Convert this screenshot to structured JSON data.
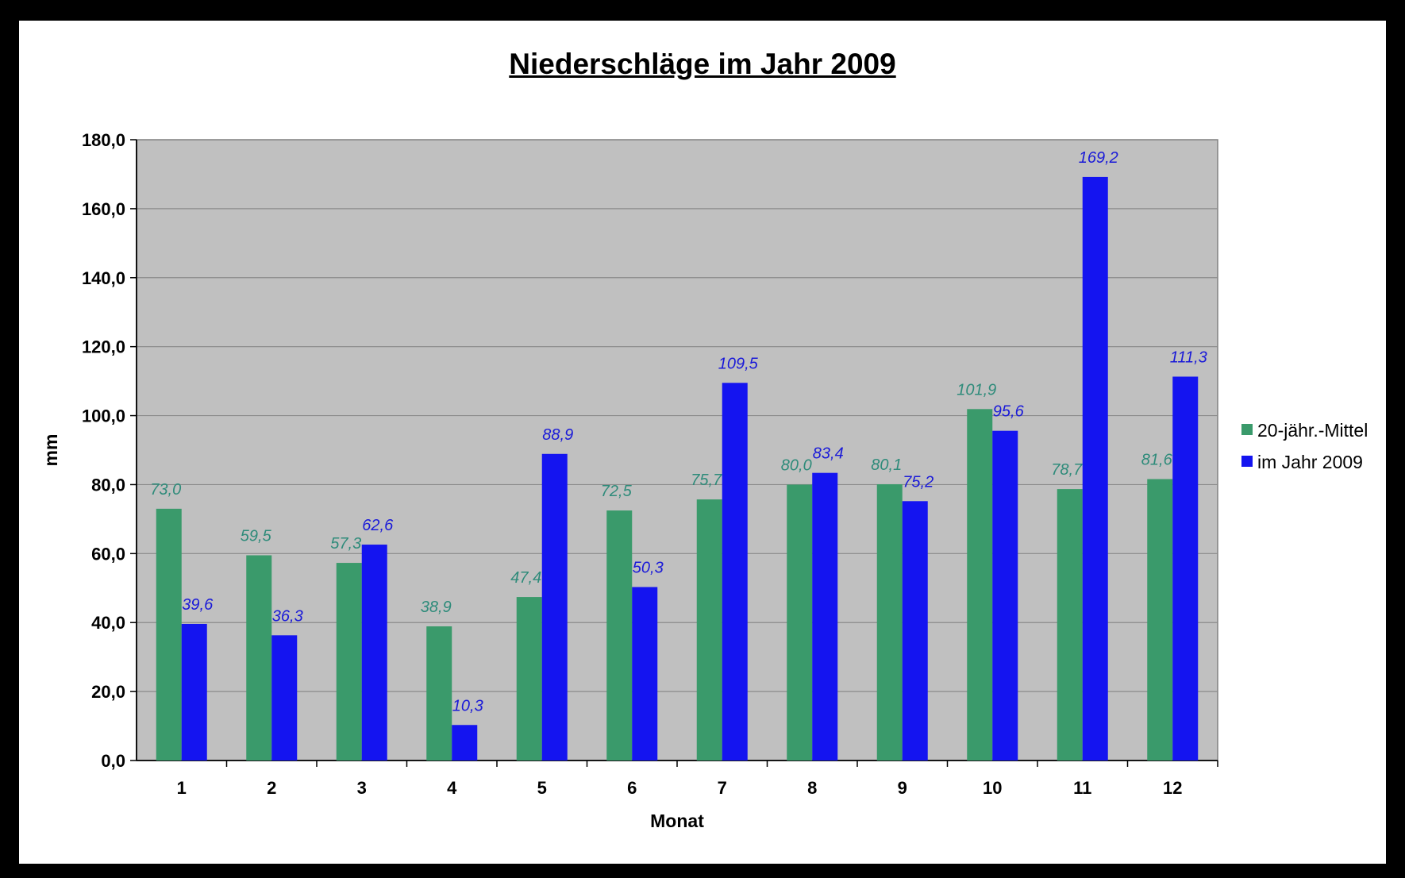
{
  "chart_data": {
    "type": "bar",
    "title": "Niederschläge im Jahr 2009",
    "xlabel": "Monat",
    "ylabel": "mm",
    "ylim": [
      0,
      180
    ],
    "ytick_step": 20,
    "ytick_labels": [
      "0,0",
      "20,0",
      "40,0",
      "60,0",
      "80,0",
      "100,0",
      "120,0",
      "140,0",
      "160,0",
      "180,0"
    ],
    "categories": [
      "1",
      "2",
      "3",
      "4",
      "5",
      "6",
      "7",
      "8",
      "9",
      "10",
      "11",
      "12"
    ],
    "series": [
      {
        "name": "20-jähr.-Mittel",
        "color": "#3a9a6b",
        "label_color": "#2e8b7a",
        "values": [
          73.0,
          59.5,
          57.3,
          38.9,
          47.4,
          72.5,
          75.7,
          80.0,
          80.1,
          101.9,
          78.7,
          81.6
        ],
        "labels": [
          "73,0",
          "59,5",
          "57,3",
          "38,9",
          "47,4",
          "72,5",
          "75,7",
          "80,0",
          "80,1",
          "101,9",
          "78,7",
          "81,6"
        ]
      },
      {
        "name": "im Jahr 2009",
        "color": "#1414f0",
        "label_color": "#1a1ad8",
        "values": [
          39.6,
          36.3,
          62.6,
          10.3,
          88.9,
          50.3,
          109.5,
          83.4,
          75.2,
          95.6,
          169.2,
          111.3
        ],
        "labels": [
          "39,6",
          "36,3",
          "62,6",
          "10,3",
          "88,9",
          "50,3",
          "109,5",
          "83,4",
          "75,2",
          "95,6",
          "169,2",
          "111,3"
        ]
      }
    ],
    "grid": true,
    "legend_position": "right",
    "plot_background": "#c0c0c0"
  }
}
